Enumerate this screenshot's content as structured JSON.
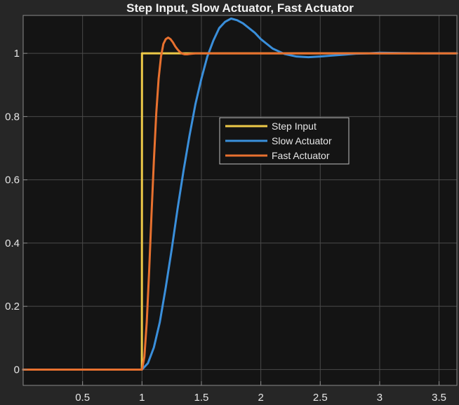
{
  "chart_data": {
    "type": "line",
    "title": "Step Input, Slow Actuator, Fast Actuator",
    "xlabel": "",
    "ylabel": "",
    "xlim": [
      0.0,
      3.65
    ],
    "ylim": [
      -0.05,
      1.12
    ],
    "xticks": [
      0.5,
      1,
      1.5,
      2,
      2.5,
      3,
      3.5
    ],
    "xtick_labels": [
      "0.5",
      "1",
      "1.5",
      "2",
      "2.5",
      "3",
      "3.5"
    ],
    "yticks": [
      0,
      0.2,
      0.4,
      0.6,
      0.8,
      1
    ],
    "ytick_labels": [
      "0",
      "0.2",
      "0.4",
      "0.6",
      "0.8",
      "1"
    ],
    "grid": true,
    "legend_position": "center",
    "series": [
      {
        "name": "Step Input",
        "color": "#EDC948",
        "x": [
          0.0,
          0.999,
          1.0,
          3.65
        ],
        "y": [
          0,
          0,
          1,
          1
        ]
      },
      {
        "name": "Slow Actuator",
        "color": "#3A8FDB",
        "x": [
          0.0,
          1.0,
          1.05,
          1.1,
          1.15,
          1.2,
          1.25,
          1.3,
          1.35,
          1.4,
          1.45,
          1.5,
          1.55,
          1.6,
          1.65,
          1.7,
          1.75,
          1.8,
          1.85,
          1.9,
          1.95,
          2.0,
          2.1,
          2.2,
          2.3,
          2.4,
          2.5,
          2.6,
          2.7,
          2.8,
          2.9,
          3.0,
          3.2,
          3.4,
          3.65
        ],
        "y": [
          0,
          0,
          0.02,
          0.07,
          0.15,
          0.26,
          0.38,
          0.51,
          0.63,
          0.74,
          0.84,
          0.92,
          0.99,
          1.04,
          1.08,
          1.1,
          1.11,
          1.105,
          1.095,
          1.08,
          1.065,
          1.045,
          1.015,
          0.998,
          0.99,
          0.988,
          0.99,
          0.993,
          0.996,
          0.999,
          1.0,
          1.002,
          1.001,
          1.0,
          1.0
        ]
      },
      {
        "name": "Fast Actuator",
        "color": "#E8712F",
        "x": [
          0.0,
          1.0,
          1.02,
          1.04,
          1.06,
          1.08,
          1.1,
          1.12,
          1.14,
          1.16,
          1.18,
          1.2,
          1.22,
          1.24,
          1.26,
          1.28,
          1.3,
          1.32,
          1.34,
          1.36,
          1.38,
          1.4,
          1.45,
          1.5,
          1.6,
          3.65
        ],
        "y": [
          0,
          0,
          0.04,
          0.15,
          0.31,
          0.49,
          0.66,
          0.81,
          0.92,
          0.99,
          1.03,
          1.045,
          1.05,
          1.045,
          1.035,
          1.022,
          1.012,
          1.004,
          0.999,
          0.997,
          0.997,
          0.998,
          1.0,
          1.0,
          1.0,
          1.0
        ]
      }
    ]
  }
}
